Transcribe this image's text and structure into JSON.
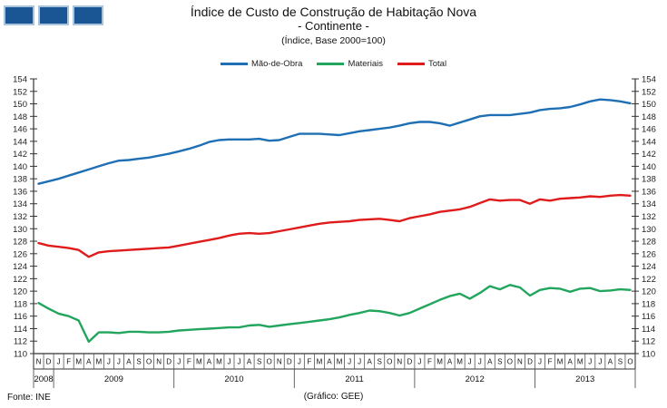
{
  "logo": {
    "square_color": "#1A5694",
    "square_border": "#A9C4DC",
    "count": 3
  },
  "title": {
    "line1": "Índice de Custo de Construção de Habitação Nova",
    "line2": "- Continente -",
    "line3": "(Índice,  Base 2000=100)"
  },
  "footer": {
    "source": "Fonte: INE",
    "credit": "(Gráfico: GEE)"
  },
  "chart_data": {
    "type": "line",
    "title": "Índice de Custo de Construção de Habitação Nova",
    "subtitle": "- Continente -",
    "note": "(Índice,  Base 2000=100)",
    "grid": false,
    "legend_position": "top-center",
    "ylim": [
      110,
      154
    ],
    "ytick_step": 2,
    "axis_color": "#333333",
    "x_start": "2008-11",
    "x_end": "2013-10",
    "month_labels": [
      "N",
      "D",
      "J",
      "F",
      "M",
      "A",
      "M",
      "J",
      "J",
      "A",
      "S",
      "O",
      "N",
      "D",
      "J",
      "F",
      "M",
      "A",
      "M",
      "J",
      "J",
      "A",
      "S",
      "O",
      "N",
      "D",
      "J",
      "F",
      "M",
      "A",
      "M",
      "J",
      "J",
      "A",
      "S",
      "O",
      "N",
      "D",
      "J",
      "F",
      "M",
      "A",
      "M",
      "J",
      "J",
      "A",
      "S",
      "O",
      "N",
      "D",
      "J",
      "F",
      "M",
      "A",
      "M",
      "J",
      "J",
      "A",
      "S",
      "O"
    ],
    "years": [
      {
        "label": "2008",
        "months": 2
      },
      {
        "label": "2009",
        "months": 12
      },
      {
        "label": "2010",
        "months": 12
      },
      {
        "label": "2011",
        "months": 12
      },
      {
        "label": "2012",
        "months": 12
      },
      {
        "label": "2013",
        "months": 10
      }
    ],
    "series": [
      {
        "name": "Mão-de-Obra",
        "color": "#1F6FB4",
        "values": [
          137.2,
          137.6,
          138.0,
          138.5,
          139.0,
          139.5,
          140.0,
          140.5,
          140.9,
          141.0,
          141.2,
          141.4,
          141.7,
          142.0,
          142.4,
          142.8,
          143.3,
          143.9,
          144.2,
          144.3,
          144.3,
          144.3,
          144.4,
          144.1,
          144.2,
          144.7,
          145.2,
          145.2,
          145.2,
          145.1,
          145.0,
          145.3,
          145.6,
          145.8,
          146.0,
          146.2,
          146.5,
          146.9,
          147.1,
          147.1,
          146.9,
          146.5,
          147.0,
          147.5,
          148.0,
          148.2,
          148.2,
          148.2,
          148.4,
          148.6,
          149.0,
          149.2,
          149.3,
          149.5,
          149.9,
          150.4,
          150.7,
          150.6,
          150.4,
          150.1
        ]
      },
      {
        "name": "Materiais",
        "color": "#22A55C",
        "values": [
          118.1,
          117.2,
          116.4,
          116.0,
          115.3,
          111.9,
          113.4,
          113.4,
          113.3,
          113.5,
          113.5,
          113.4,
          113.4,
          113.5,
          113.7,
          113.8,
          113.9,
          114.0,
          114.1,
          114.2,
          114.2,
          114.5,
          114.6,
          114.3,
          114.5,
          114.7,
          114.9,
          115.1,
          115.3,
          115.5,
          115.8,
          116.2,
          116.5,
          116.9,
          116.8,
          116.5,
          116.1,
          116.5,
          117.2,
          117.9,
          118.6,
          119.2,
          119.6,
          118.8,
          119.7,
          120.8,
          120.3,
          121.0,
          120.6,
          119.3,
          120.2,
          120.5,
          120.4,
          119.9,
          120.4,
          120.5,
          120.0,
          120.1,
          120.3,
          120.2
        ]
      },
      {
        "name": "Total",
        "color": "#E01B1B",
        "values": [
          127.7,
          127.3,
          127.1,
          126.9,
          126.6,
          125.5,
          126.2,
          126.4,
          126.5,
          126.6,
          126.7,
          126.8,
          126.9,
          127.0,
          127.3,
          127.6,
          127.9,
          128.2,
          128.5,
          128.9,
          129.2,
          129.3,
          129.2,
          129.3,
          129.6,
          129.9,
          130.2,
          130.5,
          130.8,
          131.0,
          131.1,
          131.2,
          131.4,
          131.5,
          131.6,
          131.4,
          131.2,
          131.7,
          132.0,
          132.3,
          132.7,
          132.9,
          133.1,
          133.5,
          134.1,
          134.7,
          134.5,
          134.6,
          134.6,
          134.0,
          134.7,
          134.5,
          134.8,
          134.9,
          135.0,
          135.2,
          135.1,
          135.3,
          135.4,
          135.3
        ]
      }
    ]
  }
}
